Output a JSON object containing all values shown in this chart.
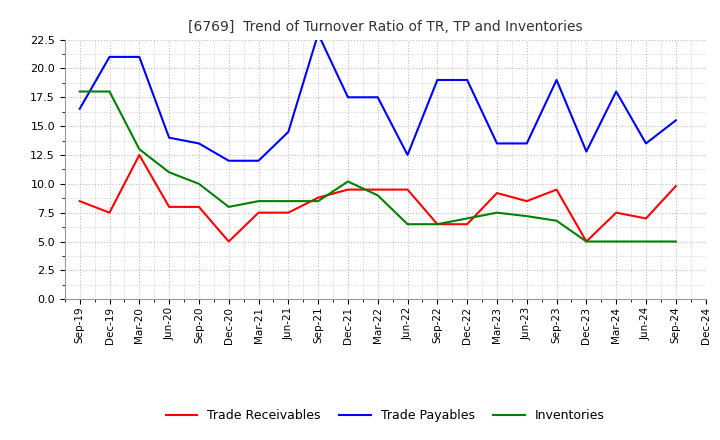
{
  "title": "[6769]  Trend of Turnover Ratio of TR, TP and Inventories",
  "x_labels": [
    "Sep-19",
    "Dec-19",
    "Mar-20",
    "Jun-20",
    "Sep-20",
    "Dec-20",
    "Mar-21",
    "Jun-21",
    "Sep-21",
    "Dec-21",
    "Mar-22",
    "Jun-22",
    "Sep-22",
    "Dec-22",
    "Mar-23",
    "Jun-23",
    "Sep-23",
    "Dec-23",
    "Mar-24",
    "Jun-24",
    "Sep-24",
    "Dec-24"
  ],
  "trade_receivables": [
    8.5,
    7.5,
    12.5,
    8.0,
    8.0,
    5.0,
    7.5,
    7.5,
    8.8,
    9.5,
    9.5,
    9.5,
    6.5,
    6.5,
    9.2,
    8.5,
    9.5,
    5.0,
    7.5,
    7.0,
    9.8,
    null
  ],
  "trade_payables": [
    16.5,
    21.0,
    21.0,
    14.0,
    13.5,
    12.0,
    12.0,
    14.5,
    23.0,
    17.5,
    17.5,
    12.5,
    19.0,
    19.0,
    13.5,
    13.5,
    19.0,
    12.8,
    18.0,
    13.5,
    15.5,
    null
  ],
  "inventories": [
    18.0,
    18.0,
    13.0,
    11.0,
    10.0,
    8.0,
    8.5,
    8.5,
    8.5,
    10.2,
    9.0,
    6.5,
    6.5,
    7.0,
    7.5,
    7.2,
    6.8,
    5.0,
    5.0,
    5.0,
    5.0,
    null
  ],
  "ylim": [
    0,
    22.5
  ],
  "yticks": [
    0.0,
    2.5,
    5.0,
    7.5,
    10.0,
    12.5,
    15.0,
    17.5,
    20.0,
    22.5
  ],
  "line_color_tr": "#FF0000",
  "line_color_tp": "#0000FF",
  "line_color_inv": "#008000",
  "background_color": "#FFFFFF",
  "grid_color": "#BBBBBB",
  "legend_labels": [
    "Trade Receivables",
    "Trade Payables",
    "Inventories"
  ]
}
